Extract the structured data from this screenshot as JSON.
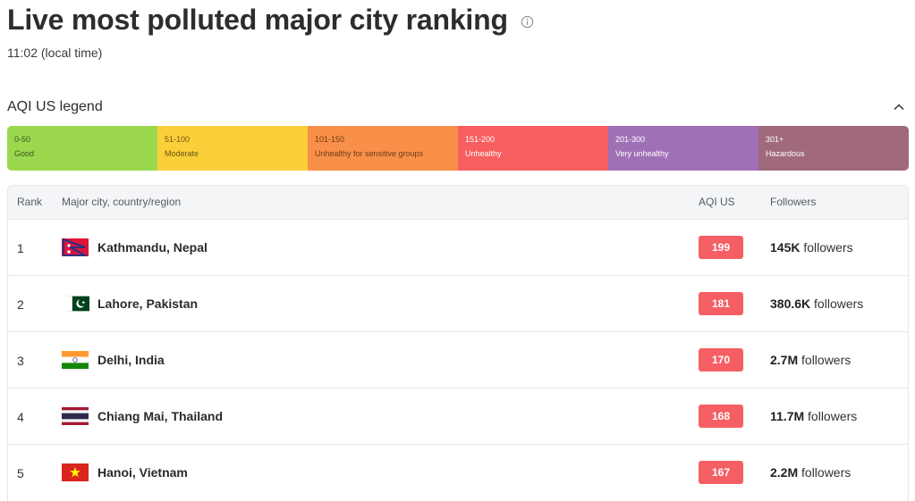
{
  "page": {
    "title": "Live most polluted major city ranking",
    "local_time": "11:02 (local time)"
  },
  "legend": {
    "title": "AQI US legend",
    "segments": [
      {
        "range": "0-50",
        "label": "Good",
        "color": "#9cd84e",
        "text_color": "#3b5320"
      },
      {
        "range": "51-100",
        "label": "Moderate",
        "color": "#facf39",
        "text_color": "#6b5516"
      },
      {
        "range": "101-150",
        "label": "Unhealthy for sensitive groups",
        "color": "#f99049",
        "text_color": "#6d3a16"
      },
      {
        "range": "151-200",
        "label": "Unhealthy",
        "color": "#f65e5f",
        "text_color": "#ffffff"
      },
      {
        "range": "201-300",
        "label": "Very unhealthy",
        "color": "#a070b6",
        "text_color": "#ffffff"
      },
      {
        "range": "301+",
        "label": "Hazardous",
        "color": "#a06a7b",
        "text_color": "#ffffff"
      }
    ]
  },
  "table": {
    "headers": {
      "rank": "Rank",
      "city": "Major city, country/region",
      "aqi": "AQI US",
      "followers": "Followers"
    },
    "aqi_color": "#f55f63",
    "rows": [
      {
        "rank": "1",
        "flag": "nepal-flag-icon",
        "city": "Kathmandu, Nepal",
        "aqi": "199",
        "followers_count": "145K",
        "followers_suffix": " followers"
      },
      {
        "rank": "2",
        "flag": "pakistan-flag-icon",
        "city": "Lahore, Pakistan",
        "aqi": "181",
        "followers_count": "380.6K",
        "followers_suffix": " followers"
      },
      {
        "rank": "3",
        "flag": "india-flag-icon",
        "city": "Delhi, India",
        "aqi": "170",
        "followers_count": "2.7M",
        "followers_suffix": " followers"
      },
      {
        "rank": "4",
        "flag": "thailand-flag-icon",
        "city": "Chiang Mai, Thailand",
        "aqi": "168",
        "followers_count": "11.7M",
        "followers_suffix": " followers"
      },
      {
        "rank": "5",
        "flag": "vietnam-flag-icon",
        "city": "Hanoi, Vietnam",
        "aqi": "167",
        "followers_count": "2.2M",
        "followers_suffix": " followers"
      }
    ]
  }
}
